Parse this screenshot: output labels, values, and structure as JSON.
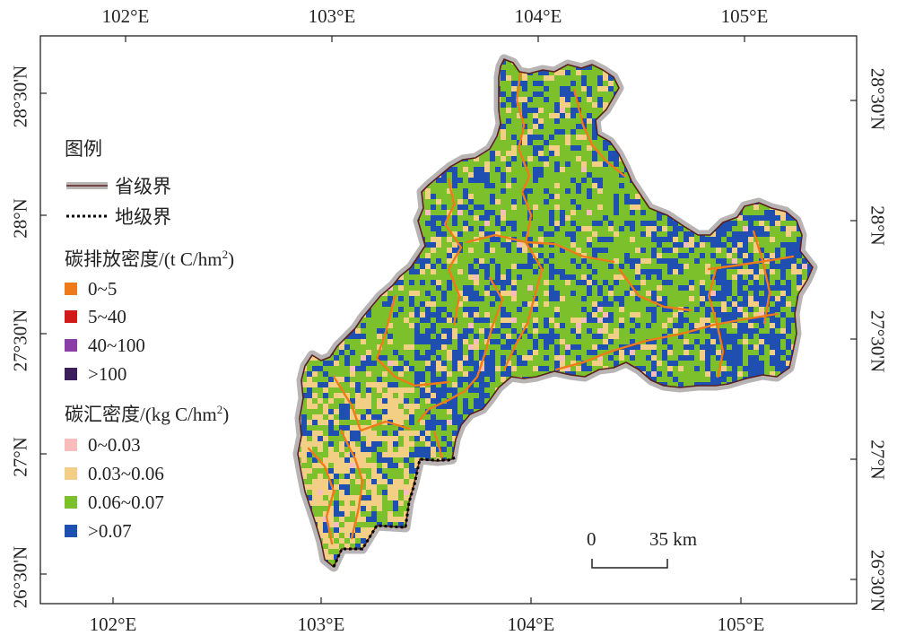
{
  "axes": {
    "lon_top": [
      "102°E",
      "103°E",
      "104°E",
      "105°E"
    ],
    "lon_bottom": [
      "102°E",
      "103°E",
      "104°E",
      "105°E"
    ],
    "lat_left": [
      "28°30'N",
      "28°N",
      "27°30'N",
      "27°N",
      "26°30'N"
    ],
    "lat_right": [
      "28°30'N",
      "28°N",
      "27°30'N",
      "27°N",
      "26°30'N"
    ]
  },
  "legend": {
    "title": "图例",
    "boundaries": [
      {
        "label": "省级界",
        "style": "provincial",
        "color": "#c0392b"
      },
      {
        "label": "地级界",
        "style": "prefecture",
        "color": "#000000"
      }
    ],
    "emission": {
      "heading": "碳排放密度/(t C/hm",
      "heading_sup": "2",
      "heading_end": ")",
      "classes": [
        {
          "label": "0~5",
          "color": "#ef7a1a"
        },
        {
          "label": "5~40",
          "color": "#d11a1a"
        },
        {
          "label": "40~100",
          "color": "#8a3fa6"
        },
        {
          "label": ">100",
          "color": "#3a1f5a"
        }
      ]
    },
    "sink": {
      "heading": "碳汇密度/(kg C/hm",
      "heading_sup": "2",
      "heading_end": ")",
      "classes": [
        {
          "label": "0~0.03",
          "color": "#f7bcbc"
        },
        {
          "label": "0.03~0.06",
          "color": "#f3cf86"
        },
        {
          "label": "0.06~0.07",
          "color": "#7cc12b"
        },
        {
          "label": ">0.07",
          "color": "#1f4fb0"
        }
      ]
    }
  },
  "scalebar": {
    "start": "0",
    "end": "35 km"
  }
}
